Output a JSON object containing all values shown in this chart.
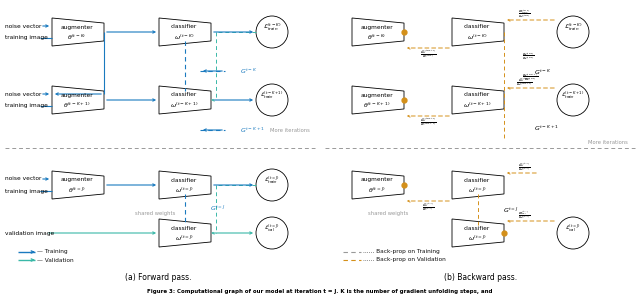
{
  "title_a": "(a) Forward pass.",
  "title_b": "(b) Backward pass.",
  "caption": "Figure 3: Computational graph of our model at iteration t = J. K is the number of gradient unfolding steps, and",
  "bg_color": "#ffffff",
  "blue": "#1a7abf",
  "teal": "#3ab8a8",
  "orange": "#d4901a",
  "gray": "#999999",
  "black": "#111111",
  "lgray": "#cccccc"
}
